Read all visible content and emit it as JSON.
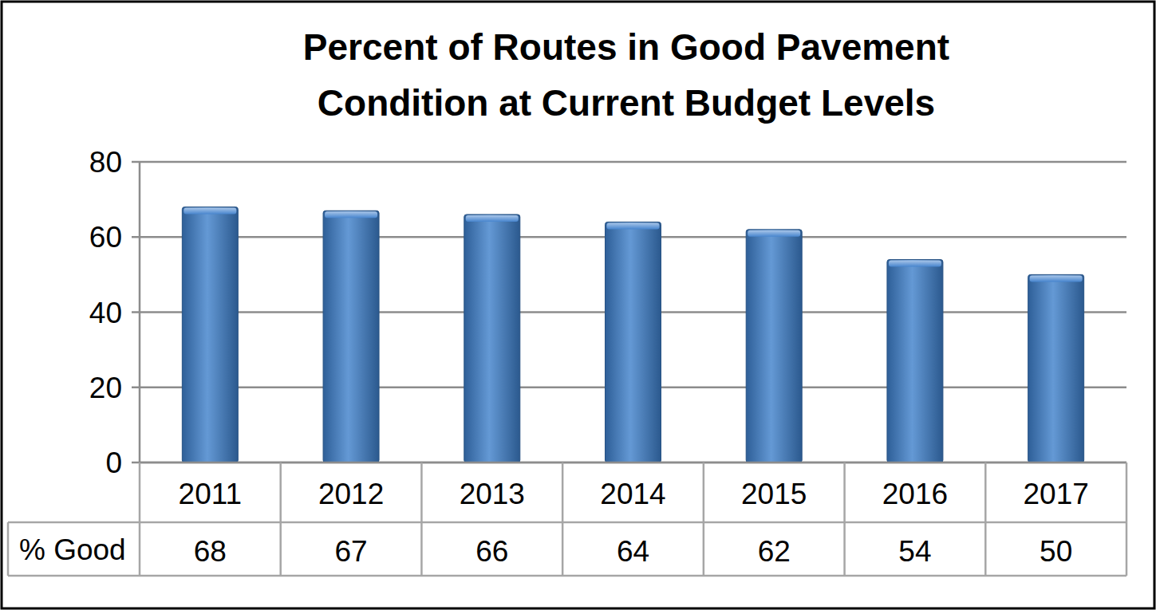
{
  "chart_data": {
    "type": "bar",
    "title": "Percent of Routes in Good Pavement Condition at Current Budget Levels",
    "categories": [
      "2011",
      "2012",
      "2013",
      "2014",
      "2015",
      "2016",
      "2017"
    ],
    "series": [
      {
        "name": "% Good",
        "color": "#3d7fcb",
        "values": [
          68,
          67,
          66,
          64,
          62,
          54,
          50
        ]
      }
    ],
    "ylim": [
      0,
      80
    ],
    "yticks": [
      0,
      20,
      40,
      60,
      80
    ],
    "grid": true,
    "data_labels": true
  }
}
